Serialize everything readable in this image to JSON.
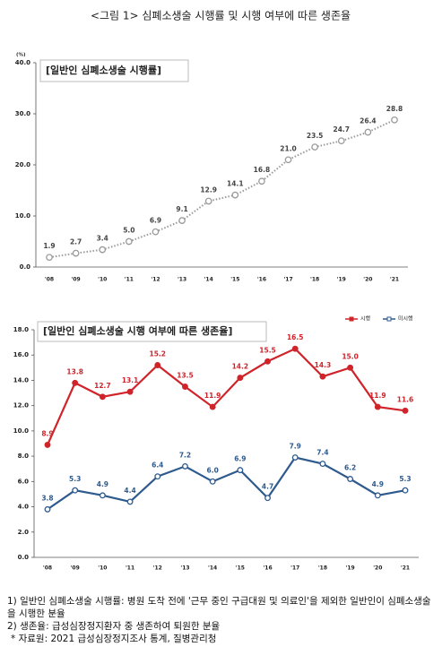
{
  "title": "<그림 1> 심폐소생술 시행률 및 시행 여부에 따른 생존율",
  "chart_data": [
    {
      "type": "line",
      "title": "[일반인 심폐소생술 시행률]",
      "y_unit": "(%)",
      "categories": [
        "'08",
        "'09",
        "'10",
        "'11",
        "'12",
        "'13",
        "'14",
        "'15",
        "'16",
        "'17",
        "'18",
        "'19",
        "'20",
        "'21"
      ],
      "series": [
        {
          "color": "#9a9a9a",
          "values": [
            1.9,
            2.7,
            3.4,
            5.0,
            6.9,
            9.1,
            12.9,
            14.1,
            16.8,
            21.0,
            23.5,
            24.7,
            26.4,
            28.8
          ],
          "value_labels": [
            "1.9",
            "2.7",
            "3.4",
            "5.0",
            "6.9",
            "9.1",
            "12.9",
            "14.1",
            "16.8",
            "21.0",
            "23.5",
            "24.7",
            "26.4",
            "28.8"
          ]
        }
      ],
      "ylim": [
        0,
        40
      ],
      "yticks": [
        {
          "value": 0,
          "label": "0.0"
        },
        {
          "value": 10,
          "label": "10.0"
        },
        {
          "value": 20,
          "label": "20.0"
        },
        {
          "value": 30,
          "label": "30.0"
        },
        {
          "value": 40,
          "label": "40.0"
        }
      ],
      "line_style": "dotted",
      "grid": false
    },
    {
      "type": "line",
      "title": "[일반인 심폐소생술 시행 여부에 따른 생존율]",
      "categories": [
        "'08",
        "'09",
        "'10",
        "'11",
        "'12",
        "'13",
        "'14",
        "'15",
        "'16",
        "'17",
        "'18",
        "'19",
        "'20",
        "'21"
      ],
      "series": [
        {
          "name": "시행",
          "color": "#d0242b",
          "values": [
            8.9,
            13.8,
            12.7,
            13.1,
            15.2,
            13.5,
            11.9,
            14.2,
            15.5,
            16.5,
            14.3,
            15.0,
            11.9,
            11.6
          ],
          "value_labels": [
            "8.9",
            "13.8",
            "12.7",
            "13.1",
            "15.2",
            "13.5",
            "11.9",
            "14.2",
            "15.5",
            "16.5",
            "14.3",
            "15.0",
            "11.9",
            "11.6"
          ]
        },
        {
          "name": "미시행",
          "color": "#2e5a8e",
          "values": [
            3.8,
            5.3,
            4.9,
            4.4,
            6.4,
            7.2,
            6.0,
            6.9,
            4.7,
            7.9,
            7.4,
            6.2,
            4.9,
            5.3
          ],
          "value_labels": [
            "3.8",
            "5.3",
            "4.9",
            "4.4",
            "6.4",
            "7.2",
            "6.0",
            "6.9",
            "4.7",
            "7.9",
            "7.4",
            "6.2",
            "4.9",
            "5.3"
          ]
        }
      ],
      "ylim": [
        0,
        18
      ],
      "yticks": [
        {
          "value": 0,
          "label": "0.0"
        },
        {
          "value": 2,
          "label": "2.0"
        },
        {
          "value": 4,
          "label": "4.0"
        },
        {
          "value": 6,
          "label": "6.0"
        },
        {
          "value": 8,
          "label": "8.0"
        },
        {
          "value": 10,
          "label": "10.0"
        },
        {
          "value": 12,
          "label": "12.0"
        },
        {
          "value": 14,
          "label": "14.0"
        },
        {
          "value": 16,
          "label": "16.0"
        },
        {
          "value": 18,
          "label": "18.0"
        }
      ],
      "line_style": "solid",
      "legend": "top-right",
      "grid": false
    }
  ],
  "notes": [
    "1) 일반인 심폐소생술 시행률: 병원 도착 전에 '근무 중인 구급대원 및 의료인'을 제외한 일반인이 심폐소생술을 시행한 분율",
    "2) 생존율: 급성심장정지환자 중 생존하여 퇴원한 분율",
    "* 자료원: 2021 급성심장정지조사 통계, 질병관리청"
  ]
}
